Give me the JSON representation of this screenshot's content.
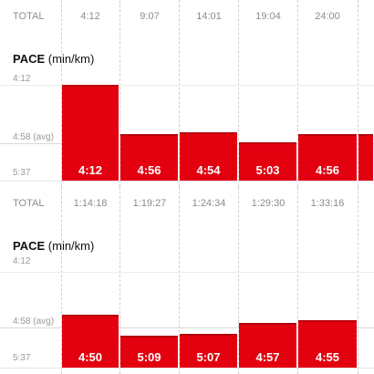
{
  "sections": [
    {
      "total_label": "TOTAL",
      "times": [
        "4:12",
        "9:07",
        "14:01",
        "19:04",
        "24:00"
      ],
      "pace_title_bold": "PACE",
      "pace_title_unit": "(min/km)",
      "axis_top": "4:12",
      "axis_avg": "4:58 (avg)",
      "axis_bottom": "5:37",
      "paces": [
        "4:12",
        "4:56",
        "4:54",
        "5:03",
        "4:56",
        ""
      ],
      "pace_seconds": [
        252,
        296,
        294,
        303,
        296,
        296
      ]
    },
    {
      "total_label": "TOTAL",
      "times": [
        "1:14:18",
        "1:19:27",
        "1:24:34",
        "1:29:30",
        "1:33:16"
      ],
      "pace_title_bold": "PACE",
      "pace_title_unit": "(min/km)",
      "axis_top": "4:12",
      "axis_avg": "4:58 (avg)",
      "axis_bottom": "5:37",
      "paces": [
        "4:50",
        "5:09",
        "5:07",
        "4:57",
        "4:55"
      ],
      "pace_seconds": [
        290,
        309,
        307,
        297,
        295
      ]
    }
  ],
  "colors": {
    "bar": "#e3000f",
    "bar_cap": "#b8000c",
    "muted_text": "#8c8c8c",
    "grid": "#cfcfcf"
  }
}
